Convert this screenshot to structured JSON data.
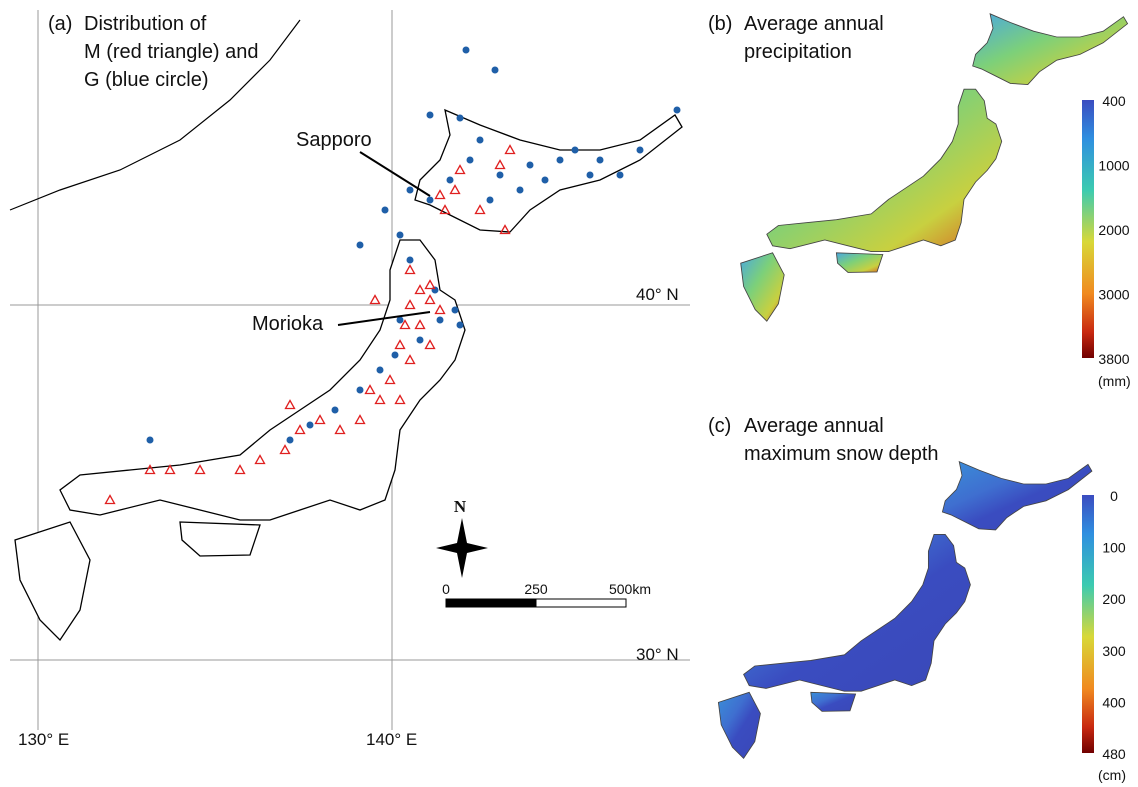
{
  "panel_a": {
    "label": "(a)",
    "title_lines": [
      "Distribution of",
      "M (red triangle) and",
      "G (blue circle)"
    ],
    "annotations": [
      "Sapporo",
      "Morioka"
    ],
    "grid_labels": [
      "40° N",
      "30° N",
      "130° E",
      "140° E"
    ],
    "north": "N",
    "scale_labels": [
      "0",
      "250",
      "500km"
    ]
  },
  "panel_b": {
    "label": "(b)",
    "title_lines": [
      "Average annual",
      "precipitation"
    ],
    "colorbar_ticks": [
      "400",
      "1000",
      "2000",
      "3000",
      "3800"
    ],
    "unit": "(mm)"
  },
  "panel_c": {
    "label": "(c)",
    "title_lines": [
      "Average annual",
      "maximum snow depth"
    ],
    "colorbar_ticks": [
      "0",
      "100",
      "200",
      "300",
      "400",
      "480"
    ],
    "unit": "(cm)"
  }
}
